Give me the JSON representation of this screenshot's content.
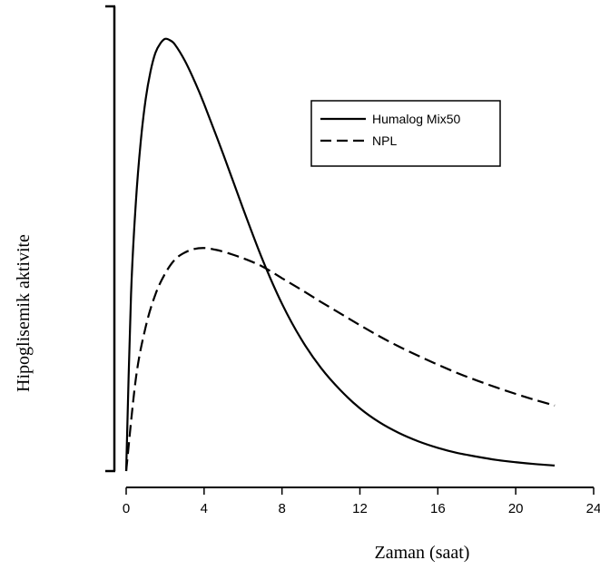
{
  "chart_data": {
    "type": "line",
    "title": "",
    "xlabel": "Zaman (saat)",
    "ylabel": "Hipoglisemik aktivite",
    "xlim": [
      0,
      24
    ],
    "ylim": [
      0,
      1
    ],
    "xticks": [
      "0",
      "4",
      "8",
      "12",
      "16",
      "20",
      "24"
    ],
    "grid": false,
    "legend_position": "top-right",
    "series": [
      {
        "name": "Humalog Mix50",
        "style": "solid",
        "color": "#000000",
        "x": [
          0,
          0.25,
          0.5,
          0.75,
          1,
          1.25,
          1.5,
          1.75,
          2,
          2.25,
          2.5,
          3,
          3.5,
          4,
          5,
          6,
          7,
          8,
          9,
          10,
          11,
          12,
          13,
          14,
          15,
          16,
          17,
          18,
          19,
          20,
          21,
          22
        ],
        "y": [
          0,
          0.38,
          0.58,
          0.71,
          0.8,
          0.86,
          0.9,
          0.92,
          0.93,
          0.927,
          0.918,
          0.884,
          0.84,
          0.79,
          0.68,
          0.565,
          0.455,
          0.36,
          0.283,
          0.222,
          0.174,
          0.135,
          0.105,
          0.082,
          0.064,
          0.05,
          0.039,
          0.031,
          0.024,
          0.019,
          0.015,
          0.012
        ]
      },
      {
        "name": "NPL",
        "style": "dashed",
        "color": "#000000",
        "x": [
          0,
          0.5,
          1,
          1.5,
          2,
          2.5,
          3,
          3.5,
          4,
          4.5,
          5,
          6,
          7,
          8,
          9,
          10,
          11,
          12,
          13,
          14,
          15,
          16,
          17,
          18,
          19,
          20,
          21,
          22
        ],
        "y": [
          0,
          0.2,
          0.31,
          0.38,
          0.425,
          0.455,
          0.47,
          0.478,
          0.48,
          0.477,
          0.472,
          0.458,
          0.44,
          0.415,
          0.39,
          0.364,
          0.339,
          0.314,
          0.29,
          0.268,
          0.248,
          0.229,
          0.211,
          0.195,
          0.18,
          0.166,
          0.153,
          0.141
        ]
      }
    ]
  }
}
